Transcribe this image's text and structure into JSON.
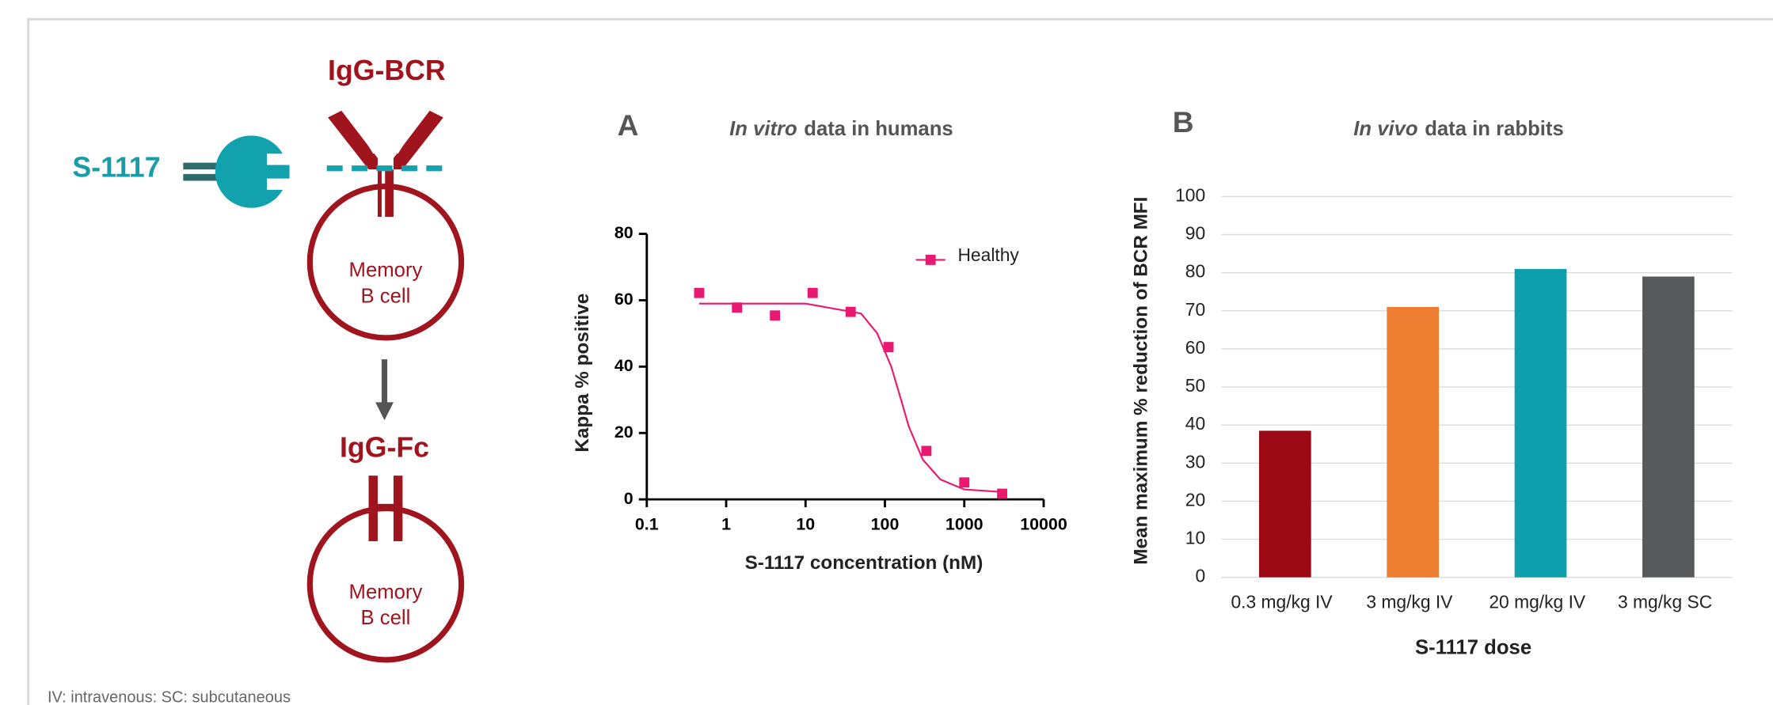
{
  "diagram": {
    "receptor_label": "IgG-BCR",
    "drug_label": "S-1117",
    "cell_label_top": [
      "Memory",
      "B cell"
    ],
    "product_label": "IgG-Fc",
    "cell_label_bottom": [
      "Memory",
      "B cell"
    ]
  },
  "chart_data": [
    {
      "type": "scatter",
      "panel": "A",
      "title_prefix": "In vitro",
      "title": "data in humans",
      "x_label": "S-1117 concentration (nM)",
      "y_label": "Kappa % positive",
      "log_x": true,
      "xlim": [
        0.1,
        10000
      ],
      "xticks": [
        0.1,
        1,
        10,
        100,
        1000,
        10000
      ],
      "ylim": [
        0,
        80
      ],
      "yticks": [
        0,
        20,
        40,
        60,
        80
      ],
      "legend": "top-right",
      "series": [
        {
          "name": "Healthy",
          "color": "#e8196e",
          "x": [
            0.457,
            1.37,
            4.12,
            12.3,
            37,
            111,
            333,
            1000,
            3000
          ],
          "values": [
            62.2,
            57.8,
            55.4,
            62.2,
            56.5,
            45.9,
            14.6,
            5.1,
            1.7
          ],
          "fit_x": [
            0.457,
            10,
            50,
            80,
            120,
            160,
            200,
            300,
            500,
            1000,
            3000
          ],
          "fit_values": [
            59,
            59,
            56,
            50,
            40,
            30,
            22,
            12,
            6,
            3,
            2.2
          ]
        }
      ]
    },
    {
      "type": "bar",
      "panel": "B",
      "title_prefix": "In vivo",
      "title": "data in rabbits",
      "x_label": "S-1117 dose",
      "y_label": "Mean maximum % reduction of BCR MFI",
      "categories": [
        "0.3 mg/kg IV",
        "3 mg/kg IV",
        "20 mg/kg IV",
        "3 mg/kg SC"
      ],
      "values": [
        38.5,
        71,
        81,
        79
      ],
      "colors": [
        "#9b0a14",
        "#ed7d31",
        "#0e9fad",
        "#58595b"
      ],
      "ylim": [
        0,
        100
      ],
      "yticks": [
        0,
        10,
        20,
        30,
        40,
        50,
        60,
        70,
        80,
        90,
        100
      ],
      "grid": true
    }
  ],
  "footnote": "IV: intravenous: SC: subcutaneous"
}
